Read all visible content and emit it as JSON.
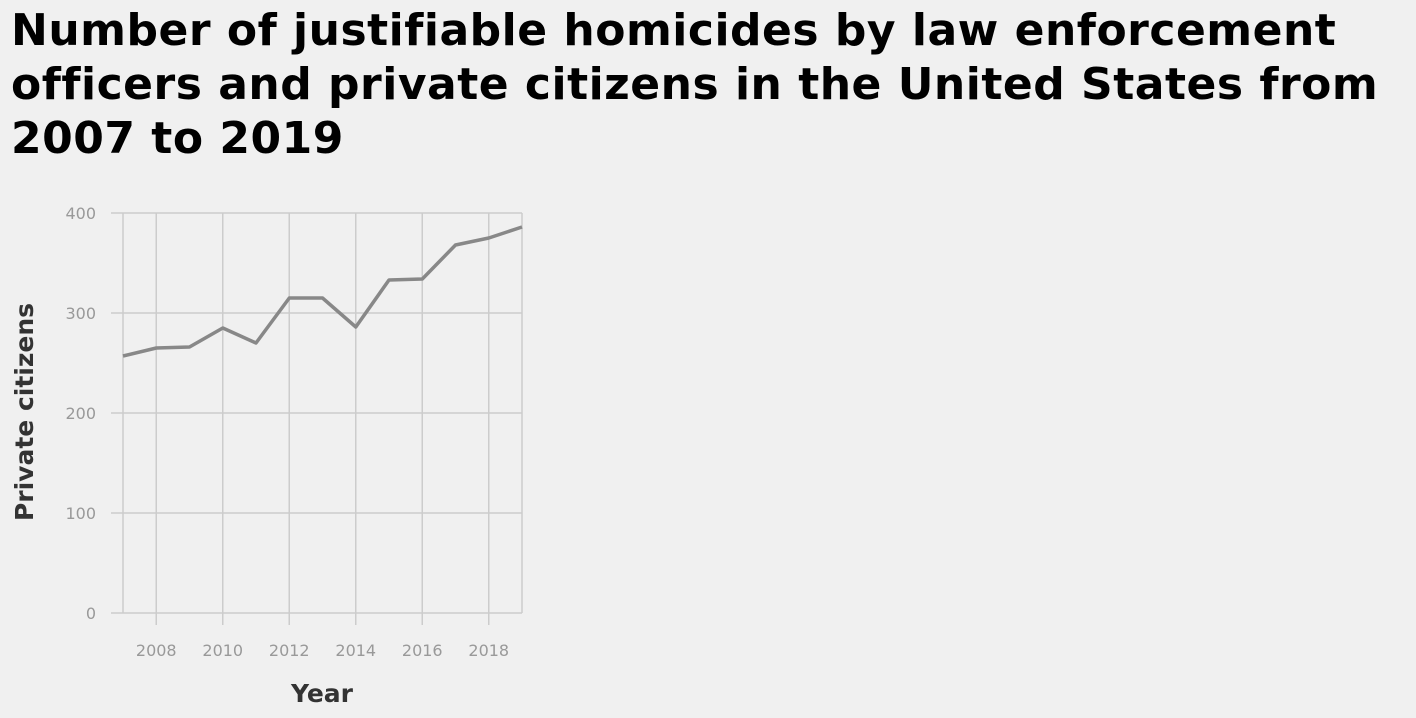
{
  "chart_data": {
    "type": "line",
    "title": "Number of justifiable homicides by law enforcement officers and private citizens in the United States from 2007 to 2019",
    "xlabel": "Year",
    "ylabel": "Private citizens",
    "x": [
      2007,
      2008,
      2009,
      2010,
      2011,
      2012,
      2013,
      2014,
      2015,
      2016,
      2017,
      2018,
      2019
    ],
    "series": [
      {
        "values": [
          257,
          265,
          266,
          285,
          270,
          315,
          315,
          286,
          333,
          334,
          368,
          375,
          386
        ]
      }
    ],
    "xlim": [
      2007,
      2019
    ],
    "ylim": [
      0,
      400
    ],
    "x_ticks": [
      "2008",
      "2010",
      "2012",
      "2014",
      "2016",
      "2018"
    ],
    "y_ticks": [
      "0",
      "100",
      "200",
      "300",
      "400"
    ],
    "grid": true,
    "line_color": "#888888"
  }
}
